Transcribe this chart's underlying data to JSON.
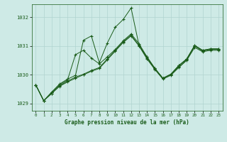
{
  "title": "Graphe pression niveau de la mer (hPa)",
  "background_color": "#ceeae6",
  "grid_color": "#b0d4d0",
  "line_color": "#1a5c1a",
  "xlim": [
    -0.5,
    23.5
  ],
  "ylim": [
    1028.75,
    1032.45
  ],
  "yticks": [
    1029,
    1030,
    1031,
    1032
  ],
  "xticks": [
    0,
    1,
    2,
    3,
    4,
    5,
    6,
    7,
    8,
    9,
    10,
    11,
    12,
    13,
    14,
    15,
    16,
    17,
    18,
    19,
    20,
    21,
    22,
    23
  ],
  "series": [
    [
      1029.65,
      1029.1,
      1029.35,
      1029.6,
      1029.75,
      1029.88,
      1030.0,
      1030.12,
      1030.22,
      1030.52,
      1030.82,
      1031.12,
      1031.35,
      1031.0,
      1030.55,
      1030.18,
      1029.85,
      1029.98,
      1030.25,
      1030.5,
      1030.95,
      1030.8,
      1030.85,
      1030.85
    ],
    [
      1029.65,
      1029.1,
      1029.35,
      1029.62,
      1029.78,
      1029.92,
      1030.02,
      1030.15,
      1030.25,
      1030.55,
      1030.85,
      1031.15,
      1031.38,
      1031.02,
      1030.58,
      1030.2,
      1029.88,
      1030.0,
      1030.28,
      1030.52,
      1031.0,
      1030.82,
      1030.88,
      1030.88
    ],
    [
      1029.65,
      1029.1,
      1029.38,
      1029.65,
      1029.82,
      1030.7,
      1030.85,
      1030.58,
      1030.38,
      1030.62,
      1030.88,
      1031.18,
      1031.42,
      1031.08,
      1030.62,
      1030.22,
      1029.88,
      1030.02,
      1030.32,
      1030.55,
      1031.02,
      1030.85,
      1030.9,
      1030.9
    ],
    [
      1029.65,
      1029.1,
      1029.4,
      1029.68,
      1029.85,
      1029.98,
      1031.2,
      1031.35,
      1030.42,
      1031.1,
      1031.65,
      1031.92,
      1032.32,
      1031.02,
      1030.62,
      1030.22,
      1029.88,
      1030.02,
      1030.32,
      1030.55,
      1031.02,
      1030.85,
      1030.9,
      1030.9
    ]
  ]
}
